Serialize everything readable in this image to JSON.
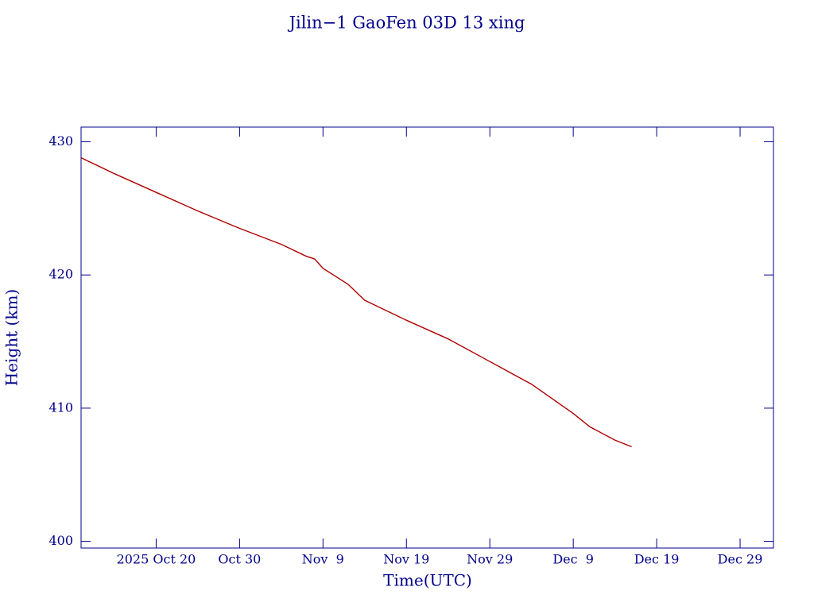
{
  "chart_data": {
    "type": "line",
    "title": "Jilin−1 GaoFen 03D 13 xing",
    "x_label": "Time(UTC)",
    "y_label": "Height (km)",
    "x": [
      "2025-10-11",
      "2025-10-15",
      "2025-10-20",
      "2025-10-25",
      "2025-10-30",
      "2025-11-04",
      "2025-11-07",
      "2025-11-08",
      "2025-11-09",
      "2025-11-12",
      "2025-11-14",
      "2025-11-19",
      "2025-11-24",
      "2025-11-29",
      "2025-12-04",
      "2025-12-09",
      "2025-12-11",
      "2025-12-14",
      "2025-12-16"
    ],
    "series": [
      {
        "name": "Height",
        "color": "#b00000",
        "values": [
          428.8,
          427.6,
          426.2,
          424.8,
          423.5,
          422.3,
          421.4,
          421.2,
          420.5,
          419.3,
          418.1,
          416.6,
          415.2,
          413.5,
          411.8,
          409.6,
          408.6,
          407.6,
          407.1
        ]
      }
    ],
    "xlim": [
      "2025-10-11",
      "2026-01-02"
    ],
    "xticks": [
      {
        "value": "2025-10-20",
        "label": "2025 Oct 20"
      },
      {
        "value": "2025-10-30",
        "label": "Oct 30"
      },
      {
        "value": "2025-11-09",
        "label": "Nov  9"
      },
      {
        "value": "2025-11-19",
        "label": "Nov 19"
      },
      {
        "value": "2025-11-29",
        "label": "Nov 29"
      },
      {
        "value": "2025-12-09",
        "label": "Dec  9"
      },
      {
        "value": "2025-12-19",
        "label": "Dec 19"
      },
      {
        "value": "2025-12-29",
        "label": "Dec 29"
      }
    ],
    "ylim": [
      399.5,
      431.1
    ],
    "yticks": [
      400,
      410,
      420,
      430
    ],
    "axis_color": "#00008b"
  }
}
